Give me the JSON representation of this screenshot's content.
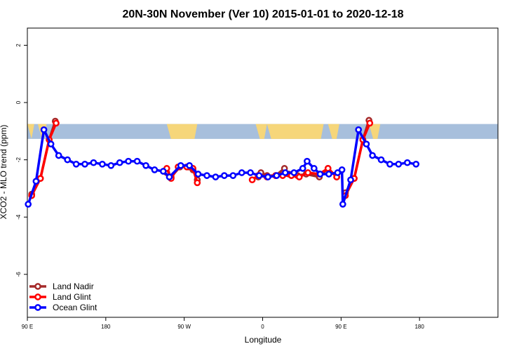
{
  "chart_data": {
    "type": "line",
    "title": "20N-30N November (Ver 10)   2015-01-01 to 2020-12-18",
    "xlabel": "Longitude",
    "ylabel": "XCO2 - MLO trend (ppm)",
    "xlim": [
      0,
      540
    ],
    "ylim": [
      -7.5,
      2.6
    ],
    "x_ticks": [
      {
        "value": 0,
        "label": "90 E"
      },
      {
        "value": 90,
        "label": "180"
      },
      {
        "value": 180,
        "label": "90 W"
      },
      {
        "value": 270,
        "label": "0"
      },
      {
        "value": 360,
        "label": "90 E"
      },
      {
        "value": 450,
        "label": "180"
      }
    ],
    "y_ticks": [
      {
        "value": 2,
        "label": "2"
      },
      {
        "value": 0,
        "label": "0"
      },
      {
        "value": -2,
        "label": "-2"
      },
      {
        "value": -4,
        "label": "-4"
      },
      {
        "value": -6,
        "label": "-6"
      }
    ],
    "map_band": {
      "y_top": -0.75,
      "y_bottom": -1.27
    },
    "legend_position": "bottom-left",
    "series": [
      {
        "name": "Land Nadir",
        "color": "#a52a2a",
        "segments": [
          [
            [
              5,
              -3.2
            ],
            [
              15,
              -2.65
            ],
            [
              25,
              -1.3
            ],
            [
              32,
              -0.65
            ]
          ],
          [
            [
              160,
              -2.45
            ],
            [
              165,
              -2.6
            ],
            [
              175,
              -2.25
            ],
            [
              185,
              -2.25
            ],
            [
              190,
              -2.35
            ],
            [
              195,
              -2.7
            ]
          ],
          [
            [
              265,
              -2.6
            ],
            [
              268,
              -2.45
            ],
            [
              275,
              -2.55
            ],
            [
              285,
              -2.55
            ],
            [
              295,
              -2.3
            ],
            [
              300,
              -2.5
            ],
            [
              310,
              -2.55
            ],
            [
              320,
              -2.5
            ],
            [
              335,
              -2.6
            ],
            [
              345,
              -2.3
            ],
            [
              355,
              -2.6
            ]
          ],
          [
            [
              365,
              -3.15
            ],
            [
              375,
              -2.65
            ],
            [
              385,
              -1.3
            ],
            [
              392,
              -0.62
            ]
          ]
        ]
      },
      {
        "name": "Land Glint",
        "color": "#ff0000",
        "segments": [
          [
            [
              5,
              -3.25
            ],
            [
              15,
              -2.65
            ],
            [
              25,
              -1.3
            ],
            [
              33,
              -0.72
            ]
          ],
          [
            [
              160,
              -2.3
            ],
            [
              165,
              -2.65
            ],
            [
              173,
              -2.25
            ],
            [
              183,
              -2.25
            ],
            [
              190,
              -2.3
            ],
            [
              195,
              -2.8
            ]
          ],
          [
            [
              258,
              -2.7
            ],
            [
              265,
              -2.55
            ],
            [
              275,
              -2.6
            ],
            [
              285,
              -2.55
            ],
            [
              293,
              -2.55
            ],
            [
              303,
              -2.55
            ],
            [
              312,
              -2.6
            ],
            [
              322,
              -2.45
            ],
            [
              335,
              -2.5
            ],
            [
              345,
              -2.3
            ],
            [
              355,
              -2.6
            ]
          ],
          [
            [
              365,
              -3.25
            ],
            [
              375,
              -2.65
            ],
            [
              385,
              -1.3
            ],
            [
              393,
              -0.72
            ]
          ]
        ]
      },
      {
        "name": "Ocean Glint",
        "color": "#0000ff",
        "segments": [
          [
            [
              1,
              -3.55
            ],
            [
              10,
              -2.75
            ],
            [
              19,
              -0.95
            ],
            [
              27,
              -1.45
            ],
            [
              36,
              -1.85
            ],
            [
              46,
              -2.0
            ],
            [
              56,
              -2.15
            ],
            [
              66,
              -2.15
            ],
            [
              76,
              -2.1
            ],
            [
              86,
              -2.15
            ],
            [
              96,
              -2.2
            ],
            [
              106,
              -2.1
            ],
            [
              116,
              -2.05
            ],
            [
              126,
              -2.05
            ],
            [
              136,
              -2.2
            ],
            [
              146,
              -2.35
            ],
            [
              156,
              -2.4
            ],
            [
              163,
              -2.6
            ],
            [
              176,
              -2.2
            ],
            [
              186,
              -2.2
            ],
            [
              196,
              -2.5
            ],
            [
              206,
              -2.55
            ],
            [
              216,
              -2.6
            ],
            [
              226,
              -2.55
            ],
            [
              236,
              -2.55
            ],
            [
              246,
              -2.45
            ],
            [
              256,
              -2.45
            ],
            [
              266,
              -2.55
            ],
            [
              276,
              -2.6
            ],
            [
              286,
              -2.55
            ],
            [
              296,
              -2.45
            ],
            [
              306,
              -2.45
            ],
            [
              316,
              -2.3
            ],
            [
              321,
              -2.05
            ],
            [
              329,
              -2.3
            ],
            [
              336,
              -2.5
            ],
            [
              346,
              -2.5
            ],
            [
              356,
              -2.45
            ],
            [
              361,
              -2.35
            ],
            [
              362,
              -3.55
            ],
            [
              371,
              -2.7
            ],
            [
              380,
              -0.95
            ],
            [
              389,
              -1.45
            ],
            [
              396,
              -1.85
            ],
            [
              406,
              -2.0
            ],
            [
              416,
              -2.15
            ],
            [
              426,
              -2.15
            ],
            [
              436,
              -2.1
            ],
            [
              446,
              -2.15
            ]
          ]
        ]
      }
    ]
  }
}
